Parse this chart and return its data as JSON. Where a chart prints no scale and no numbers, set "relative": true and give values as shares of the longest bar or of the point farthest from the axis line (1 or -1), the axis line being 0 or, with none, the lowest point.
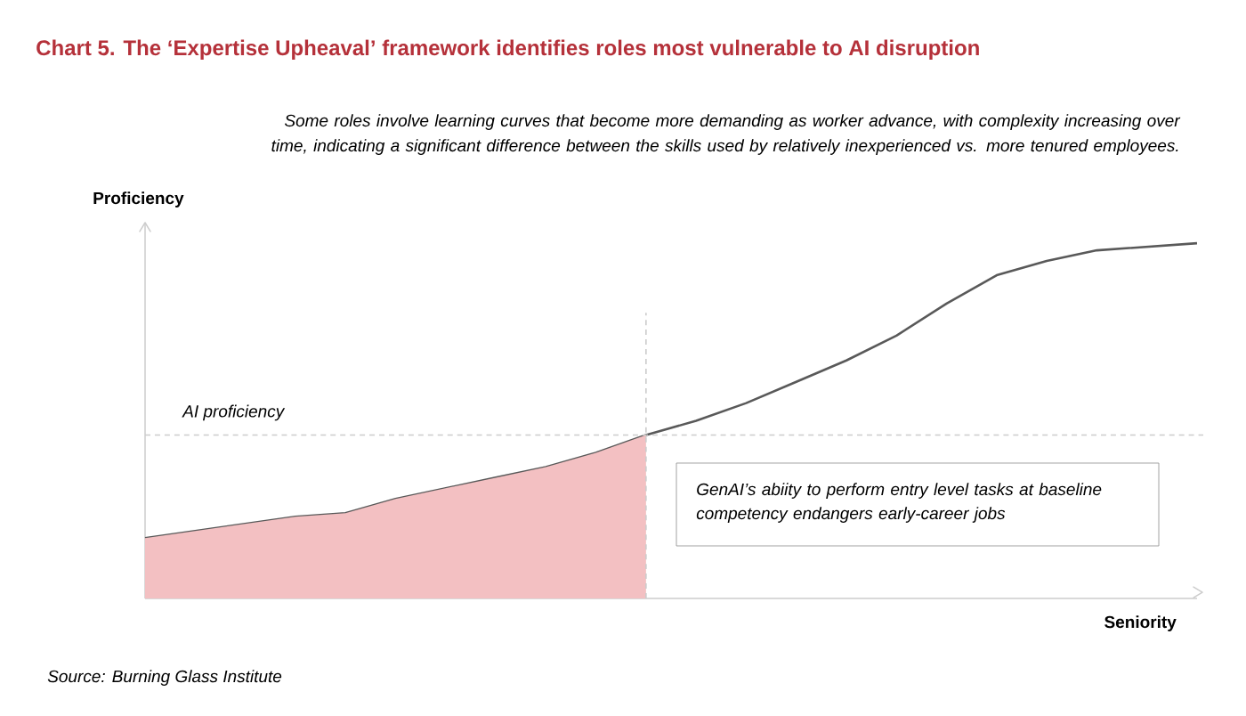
{
  "chart_data": {
    "type": "line",
    "relative": true,
    "title": "Chart 5. The ‘Expertise Upheaval’ framework identifies roles most vulnerable to AI disruption",
    "subtitle": "Some roles involve learning curves that become more demanding as worker advance, with complexity increasing over time, indicating a significant difference between the skills used by relatively inexperienced vs. more tenured employees.",
    "xlabel": "Seniority",
    "ylabel": "Proficiency",
    "categories": [
      null,
      null,
      null,
      null,
      null,
      null,
      null,
      null,
      null,
      null,
      null,
      null,
      null,
      null,
      null,
      null,
      null,
      null,
      null,
      null,
      null,
      null
    ],
    "series": [
      {
        "color": "#595959",
        "values": [
          0.17,
          0.19,
          0.21,
          0.23,
          0.24,
          0.28,
          0.31,
          0.34,
          0.37,
          0.41,
          0.46,
          0.5,
          0.55,
          0.61,
          0.67,
          0.74,
          0.83,
          0.91,
          0.95,
          0.98,
          0.99,
          1
        ]
      },
      {
        "type": "area",
        "color": "#f3c0c2",
        "values": [
          0.17,
          0.19,
          0.21,
          0.23,
          0.24,
          0.28,
          0.31,
          0.34,
          0.37,
          0.41,
          0.46,
          null,
          null,
          null,
          null,
          null,
          null,
          null,
          null,
          null,
          null,
          null
        ]
      }
    ],
    "ref_lines": [
      {
        "axis": "y",
        "value": 0.46,
        "label": "AI proficiency",
        "color": "#cccccc",
        "line_style": "dashed"
      }
    ],
    "annotations": [
      "GenAI’s abiity to perform entry level tasks at baseline competency endangers early-career jobs",
      "Source: Burning Glass Institute"
    ],
    "marker": "none",
    "line_style": "solid"
  }
}
